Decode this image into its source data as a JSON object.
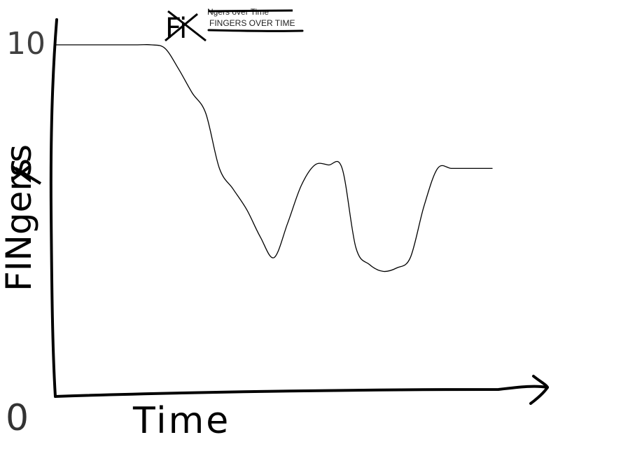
{
  "chart_data": {
    "type": "line",
    "title_struck": "Ngers over Time",
    "title": "FINGERS OVER TIME",
    "title_scribble": "Fi",
    "xlabel": "Time",
    "ylabel": "FINgers",
    "ylabel_struck": "x",
    "yticks": [
      "10",
      "0"
    ],
    "ylim": [
      0,
      10
    ],
    "x": [
      0,
      1,
      2,
      3,
      3.5,
      4,
      4.5,
      5,
      5.5,
      6,
      6.5,
      7,
      7.5,
      8,
      8.5,
      9,
      9.5,
      10,
      10.5,
      11,
      11.5,
      12,
      12.5,
      13,
      13.5,
      14,
      14.5,
      15,
      16
    ],
    "series": [
      {
        "values": [
          10,
          10,
          10,
          10,
          10,
          9.9,
          9.3,
          8.6,
          8.0,
          6.4,
          5.8,
          5.2,
          4.4,
          3.8,
          4.8,
          5.9,
          6.5,
          6.5,
          6.4,
          4.1,
          3.6,
          3.4,
          3.5,
          3.8,
          5.3,
          6.4,
          6.4,
          6.4,
          6.4
        ]
      }
    ],
    "xlim": [
      -0.3,
      16
    ],
    "grid": false
  }
}
